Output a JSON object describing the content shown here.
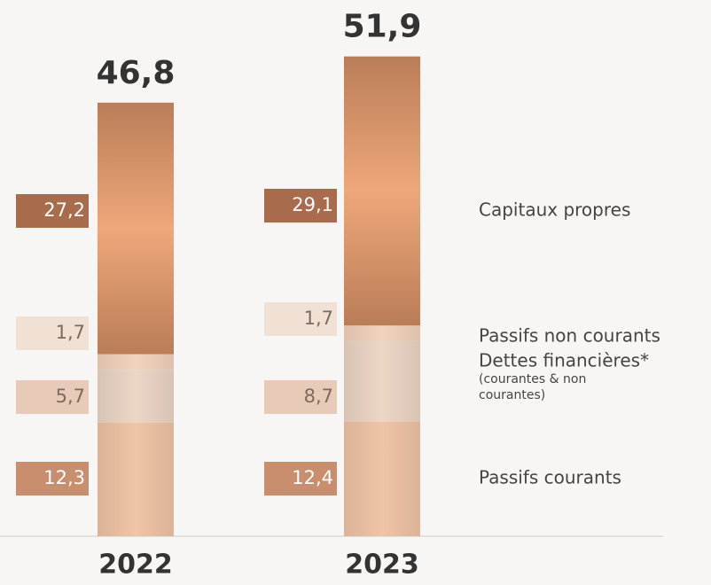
{
  "chart_data": {
    "type": "stacked_bar",
    "categories": [
      "2022",
      "2023"
    ],
    "totals": [
      46.8,
      51.9
    ],
    "total_labels": [
      "46,8",
      "51,9"
    ],
    "series": [
      {
        "name": "Passifs courants",
        "color": "#f0c4a6",
        "values": [
          12.3,
          12.4
        ],
        "value_labels": [
          "12,3",
          "12,4"
        ],
        "label_color": "#c98e6e",
        "label_text": "#ffffff"
      },
      {
        "name": "Dettes financières*",
        "sublabel": "(courantes & non courantes)",
        "color": "#ecd6c6",
        "values": [
          5.7,
          8.7
        ],
        "value_labels": [
          "5,7",
          "8,7"
        ],
        "label_color": "#e7cbb8",
        "label_text": "#7a6a60"
      },
      {
        "name": "Passifs non courants",
        "color": "#f2d3bd",
        "values": [
          1.7,
          1.7
        ],
        "value_labels": [
          "1,7",
          "1,7"
        ],
        "label_color": "#f1e0d4",
        "label_text": "#7a6a60"
      },
      {
        "name": "Capitaux propres",
        "color": "#eea77a",
        "values": [
          27.2,
          29.1
        ],
        "value_labels": [
          "27,2",
          "29,1"
        ],
        "label_color": "#a86b4c",
        "label_text": "#ffffff"
      }
    ]
  }
}
